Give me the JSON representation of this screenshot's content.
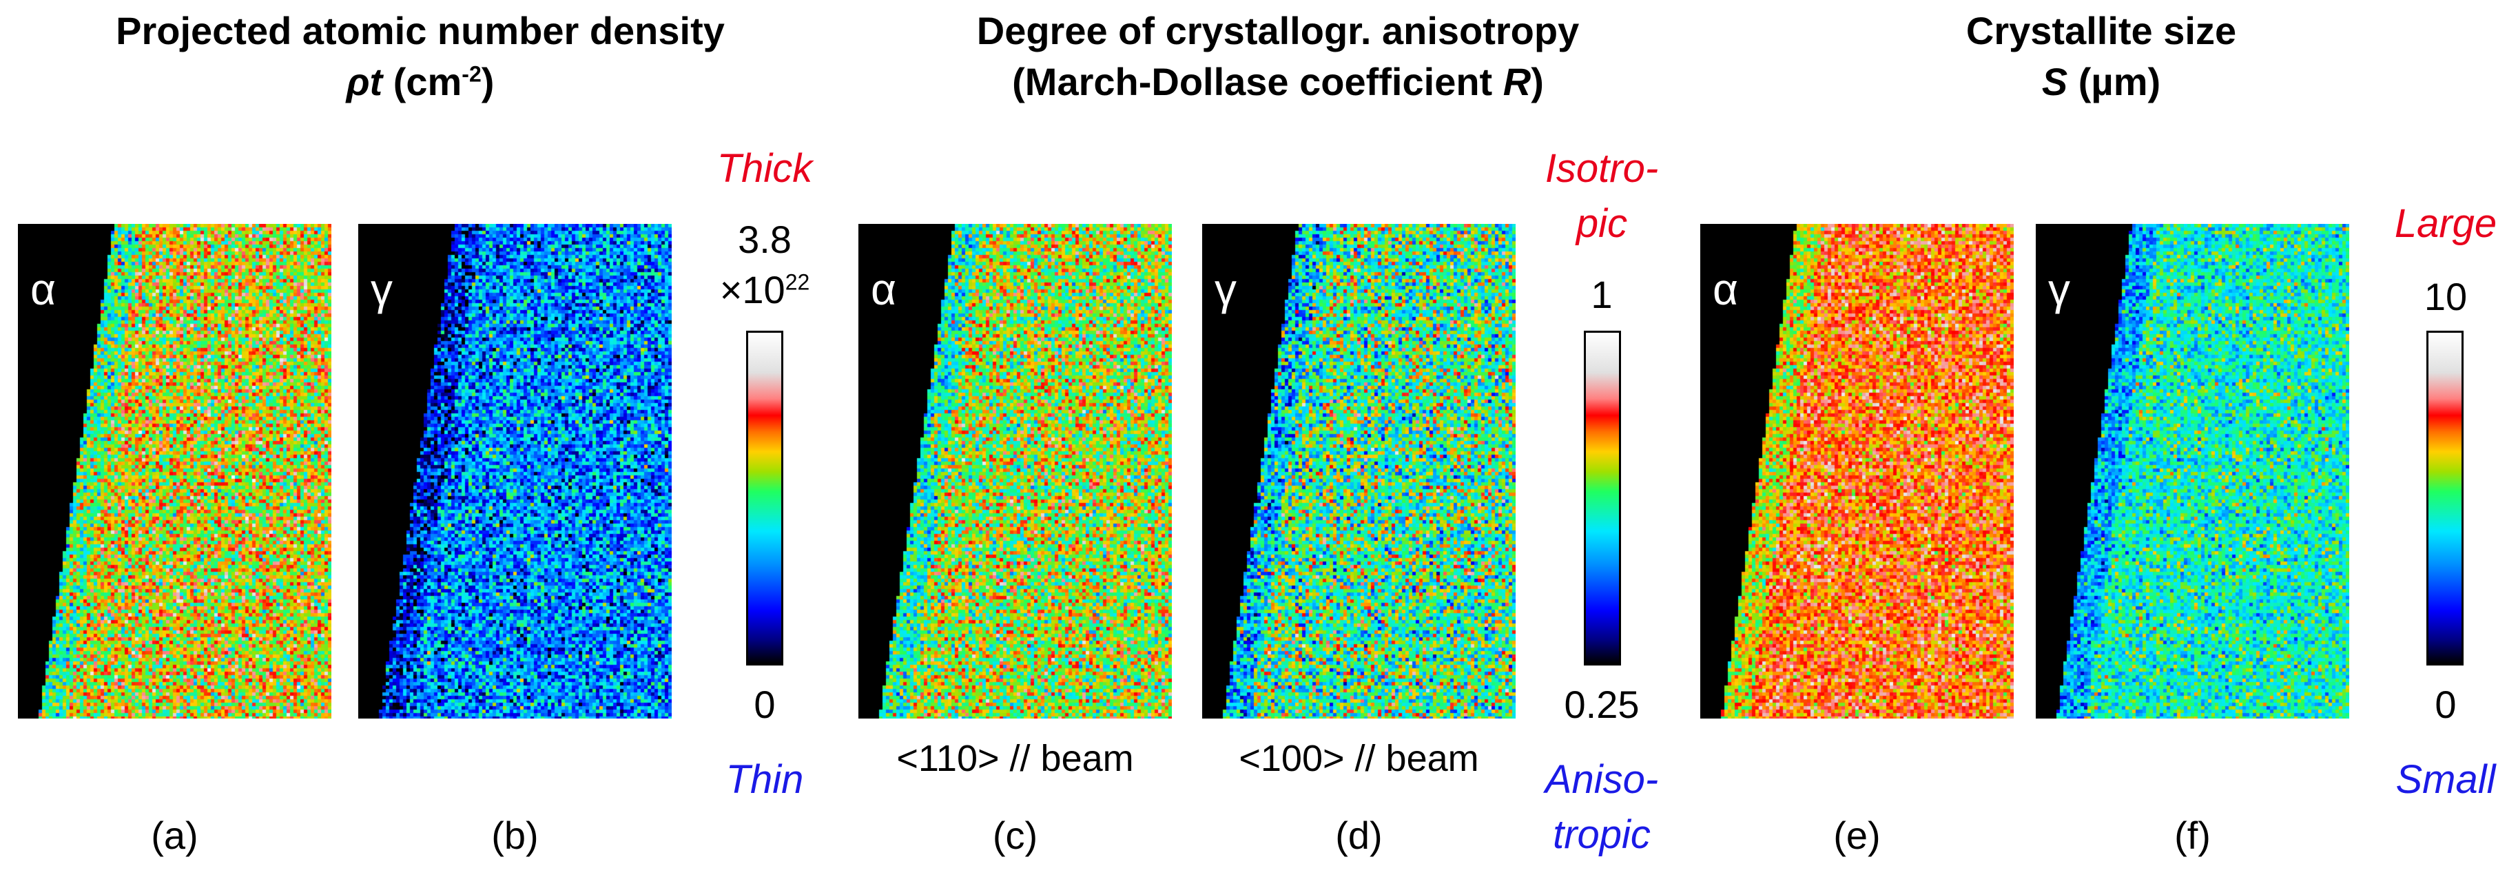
{
  "sections": [
    {
      "title_line1": "Projected atomic number density",
      "title_symbol": "ρt",
      "title_unit": "(cm",
      "title_unit_exp": "-2",
      "title_unit_close": ")",
      "scale": {
        "top_label": "Thick",
        "max": "3.8",
        "max_mult": "×10",
        "max_exp": "22",
        "min": "0",
        "bottom_label": "Thin"
      },
      "panels": [
        {
          "phase": "α",
          "caption": "(a)",
          "beam": ""
        },
        {
          "phase": "γ",
          "caption": "(b)",
          "beam": ""
        }
      ]
    },
    {
      "title_line1": "Degree of crystallogr. anisotropy",
      "title_line2_pre": "(March-Dollase coefficient",
      "title_symbol": "R",
      "title_line2_post": ")",
      "scale": {
        "top_label_1": "Isotro-",
        "top_label_2": "pic",
        "max": "1",
        "min": "0.25",
        "bottom_label_1": "Aniso-",
        "bottom_label_2": "tropic"
      },
      "panels": [
        {
          "phase": "α",
          "caption": "(c)",
          "beam": "<110> // beam"
        },
        {
          "phase": "γ",
          "caption": "(d)",
          "beam": "<100> // beam"
        }
      ]
    },
    {
      "title_line1": "Crystallite size",
      "title_symbol": "S",
      "title_unit": "(µm)",
      "scale": {
        "top_label": "Large",
        "max": "10",
        "min": "0",
        "bottom_label": "Small"
      },
      "panels": [
        {
          "phase": "α",
          "caption": "(e)",
          "beam": ""
        },
        {
          "phase": "γ",
          "caption": "(f)",
          "beam": ""
        }
      ]
    }
  ],
  "colors": {
    "high_label": "#e8001c",
    "low_label": "#1a1ae6",
    "map_background": "#000000"
  },
  "map_levels": {
    "a": 0.62,
    "b": 0.3,
    "c": 0.58,
    "d": 0.5,
    "e": 0.72,
    "f": 0.45
  }
}
